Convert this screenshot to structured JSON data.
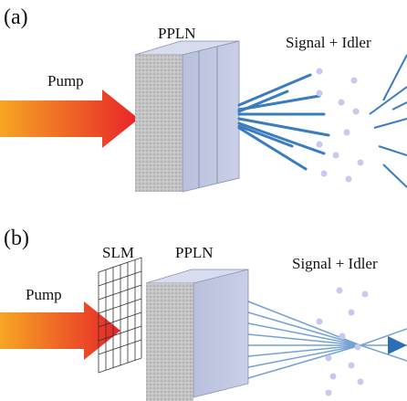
{
  "panels": [
    {
      "label": "(a)",
      "crystal": "PPLN",
      "output": "Signal + Idler",
      "input": "Pump"
    },
    {
      "label": "(b)",
      "modulator": "SLM",
      "crystal": "PPLN",
      "output": "Signal + Idler",
      "input": "Pump"
    }
  ]
}
